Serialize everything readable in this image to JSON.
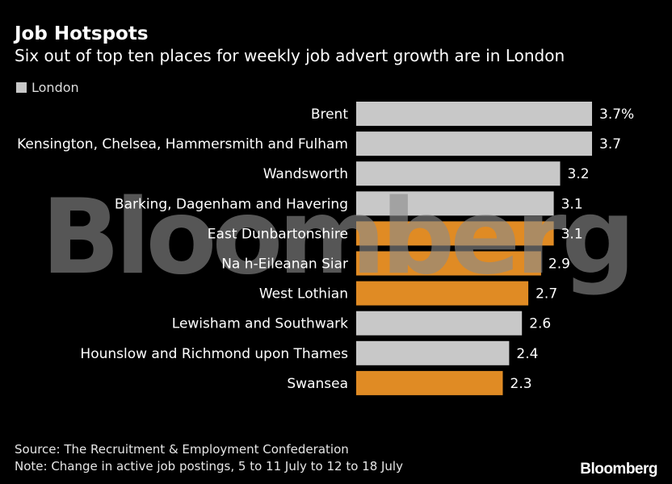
{
  "header": {
    "title": "Job Hotspots",
    "subtitle": "Six out of top ten places for weekly job advert growth are in London"
  },
  "legend": {
    "label": "London",
    "color": "#c8c8c8"
  },
  "colors": {
    "london": "#c8c8c8",
    "other": "#e08b24",
    "background": "#000000"
  },
  "watermark": "Bloomberg",
  "chart_data": {
    "type": "bar",
    "orientation": "horizontal",
    "title": "Job Hotspots",
    "subtitle": "Six out of top ten places for weekly job advert growth are in London",
    "categories": [
      "Brent",
      "Kensington, Chelsea, Hammersmith and Fulham",
      "Wandsworth",
      "Barking, Dagenham and Havering",
      "East Dunbartonshire",
      "Na h-Eileanan Siar",
      "West Lothian",
      "Lewisham and Southwark",
      "Hounslow and Richmond upon Thames",
      "Swansea"
    ],
    "values": [
      3.7,
      3.7,
      3.2,
      3.1,
      3.1,
      2.9,
      2.7,
      2.6,
      2.4,
      2.3
    ],
    "value_labels": [
      "3.7%",
      "3.7",
      "3.2",
      "3.1",
      "3.1",
      "2.9",
      "2.7",
      "2.6",
      "2.4",
      "2.3"
    ],
    "is_london": [
      true,
      true,
      true,
      true,
      false,
      false,
      false,
      true,
      true,
      false
    ],
    "xlim": [
      0,
      3.7
    ],
    "unit": "%",
    "grid": false,
    "legend": {
      "entries": [
        "London"
      ],
      "position": "top-left"
    }
  },
  "footer": {
    "source": "Source: The Recruitment & Employment Confederation",
    "note": "Note: Change in active job postings, 5 to 11 July to 12 to 18 July",
    "brand": "Bloomberg"
  }
}
